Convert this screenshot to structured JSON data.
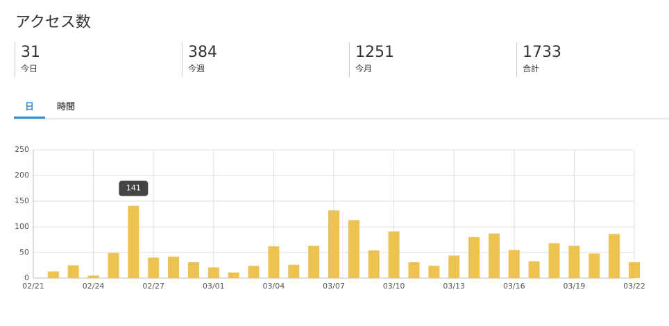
{
  "header": {
    "title": "アクセス数"
  },
  "stats": [
    {
      "value": "31",
      "label": "今日"
    },
    {
      "value": "384",
      "label": "今週"
    },
    {
      "value": "1251",
      "label": "今月"
    },
    {
      "value": "1733",
      "label": "合計"
    }
  ],
  "tabs": [
    {
      "label": "日",
      "active": true
    },
    {
      "label": "時間",
      "active": false
    }
  ],
  "chart_data": {
    "type": "bar",
    "categories": [
      "02/21",
      null,
      null,
      "02/24",
      null,
      null,
      "02/27",
      null,
      null,
      "03/01",
      null,
      null,
      "03/04",
      null,
      null,
      "03/07",
      null,
      null,
      "03/10",
      null,
      null,
      "03/13",
      null,
      null,
      "03/16",
      null,
      null,
      "03/19",
      null,
      null,
      "03/22"
    ],
    "values": [
      null,
      13,
      25,
      5,
      49,
      141,
      40,
      42,
      31,
      21,
      11,
      24,
      62,
      26,
      63,
      132,
      113,
      54,
      91,
      31,
      24,
      44,
      80,
      87,
      55,
      33,
      68,
      63,
      48,
      86,
      31
    ],
    "color": "#ecc351",
    "ylim": [
      0,
      250
    ],
    "yticks": [
      0,
      50,
      100,
      150,
      200,
      250
    ],
    "grid": true,
    "tooltip_index": 5
  }
}
